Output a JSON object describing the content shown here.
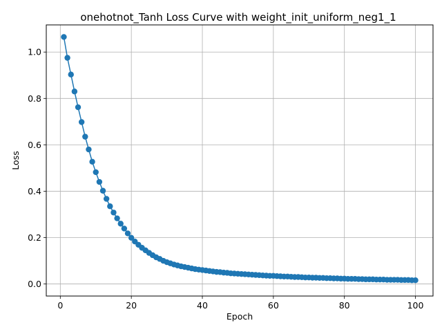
{
  "chart_data": {
    "type": "line",
    "title": "onehotnot_Tanh Loss Curve with weight_init_uniform_neg1_1",
    "xlabel": "Epoch",
    "ylabel": "Loss",
    "xlim": [
      -3.95,
      104.95
    ],
    "ylim": [
      -0.052,
      1.117
    ],
    "xticks": [
      0,
      20,
      40,
      60,
      80,
      100
    ],
    "yticks": [
      0.0,
      0.2,
      0.4,
      0.6,
      0.8,
      1.0
    ],
    "xtick_labels": [
      "0",
      "20",
      "40",
      "60",
      "80",
      "100"
    ],
    "ytick_labels": [
      "0.0",
      "0.2",
      "0.4",
      "0.6",
      "0.8",
      "1.0"
    ],
    "grid": true,
    "marker": "circle",
    "color": "#1f77b4",
    "x": [
      1,
      2,
      3,
      4,
      5,
      6,
      7,
      8,
      9,
      10,
      11,
      12,
      13,
      14,
      15,
      16,
      17,
      18,
      19,
      20,
      21,
      22,
      23,
      24,
      25,
      26,
      27,
      28,
      29,
      30,
      31,
      32,
      33,
      34,
      35,
      36,
      37,
      38,
      39,
      40,
      41,
      42,
      43,
      44,
      45,
      46,
      47,
      48,
      49,
      50,
      51,
      52,
      53,
      54,
      55,
      56,
      57,
      58,
      59,
      60,
      61,
      62,
      63,
      64,
      65,
      66,
      67,
      68,
      69,
      70,
      71,
      72,
      73,
      74,
      75,
      76,
      77,
      78,
      79,
      80,
      81,
      82,
      83,
      84,
      85,
      86,
      87,
      88,
      89,
      90,
      91,
      92,
      93,
      94,
      95,
      96,
      97,
      98,
      99,
      100
    ],
    "y": [
      1.065,
      0.975,
      0.903,
      0.83,
      0.762,
      0.698,
      0.635,
      0.58,
      0.527,
      0.482,
      0.44,
      0.402,
      0.367,
      0.335,
      0.308,
      0.283,
      0.26,
      0.239,
      0.218,
      0.199,
      0.183,
      0.169,
      0.156,
      0.145,
      0.134,
      0.124,
      0.115,
      0.108,
      0.1,
      0.094,
      0.089,
      0.084,
      0.08,
      0.076,
      0.073,
      0.07,
      0.067,
      0.064,
      0.062,
      0.06,
      0.058,
      0.056,
      0.054,
      0.052,
      0.051,
      0.049,
      0.048,
      0.046,
      0.045,
      0.044,
      0.043,
      0.042,
      0.041,
      0.04,
      0.039,
      0.038,
      0.037,
      0.036,
      0.035,
      0.035,
      0.034,
      0.033,
      0.032,
      0.032,
      0.031,
      0.03,
      0.03,
      0.029,
      0.028,
      0.028,
      0.027,
      0.027,
      0.026,
      0.026,
      0.025,
      0.025,
      0.024,
      0.024,
      0.023,
      0.023,
      0.022,
      0.022,
      0.022,
      0.021,
      0.021,
      0.02,
      0.02,
      0.02,
      0.019,
      0.019,
      0.019,
      0.018,
      0.018,
      0.018,
      0.018,
      0.017,
      0.017,
      0.017,
      0.016,
      0.016
    ]
  }
}
